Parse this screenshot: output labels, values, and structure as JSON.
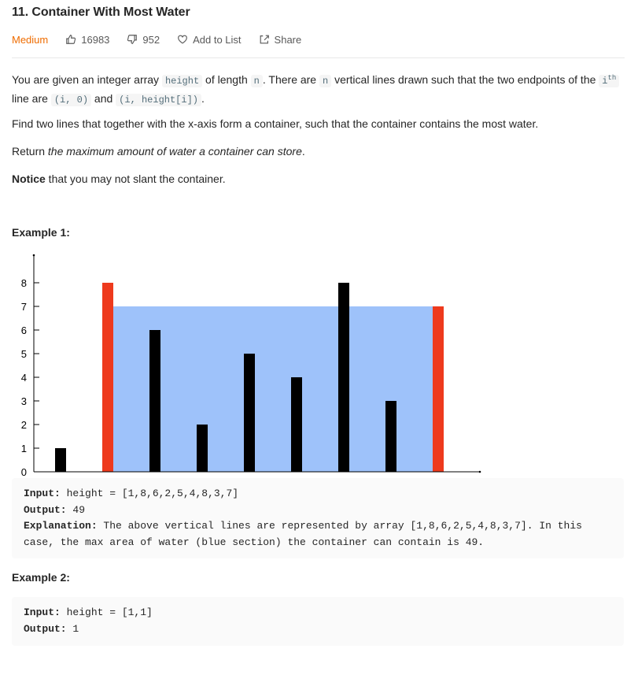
{
  "problem": {
    "title": "11. Container With Most Water",
    "difficulty": "Medium",
    "likes": "16983",
    "dislikes": "952",
    "add_to_list": "Add to List",
    "share": "Share"
  },
  "description": {
    "p1_a": "You are given an integer array ",
    "p1_code_height": "height",
    "p1_b": " of length ",
    "p1_code_n": "n",
    "p1_c": ". There are ",
    "p1_code_n2": "n",
    "p1_d": " vertical lines drawn such that the two endpoints of the ",
    "p1_code_i": "i",
    "p1_sup": "th",
    "p1_e": " line are ",
    "p1_code_pt1": "(i, 0)",
    "p1_f": " and ",
    "p1_code_pt2": "(i, height[i])",
    "p1_g": ".",
    "p2": "Find two lines that together with the x-axis form a container, such that the container contains the most water.",
    "p3_a": "Return ",
    "p3_em": "the maximum amount of water a container can store",
    "p3_b": ".",
    "p4_strong": "Notice",
    "p4_rest": " that you may not slant the container."
  },
  "example1": {
    "title": "Example 1:",
    "input_label": "Input:",
    "input_value": " height = [1,8,6,2,5,4,8,3,7]",
    "output_label": "Output:",
    "output_value": " 49",
    "explanation_label": "Explanation:",
    "explanation_value": " The above vertical lines are represented by array [1,8,6,2,5,4,8,3,7]. In this case, the max area of water (blue section) the container can contain is 49."
  },
  "example2": {
    "title": "Example 2:",
    "input_label": "Input:",
    "input_value": " height = [1,1]",
    "output_label": "Output:",
    "output_value": " 1"
  },
  "chart_data": {
    "type": "bar",
    "values": [
      1,
      8,
      6,
      2,
      5,
      4,
      8,
      3,
      7
    ],
    "highlighted_indices": [
      1,
      8
    ],
    "water_level": 7,
    "ylim": [
      0,
      9
    ],
    "y_ticks": [
      "0",
      "1",
      "2",
      "3",
      "4",
      "5",
      "6",
      "7",
      "8"
    ],
    "colors": {
      "bar": "#000000",
      "highlight": "#ee3a1d",
      "water": "#9ec2fa"
    }
  }
}
